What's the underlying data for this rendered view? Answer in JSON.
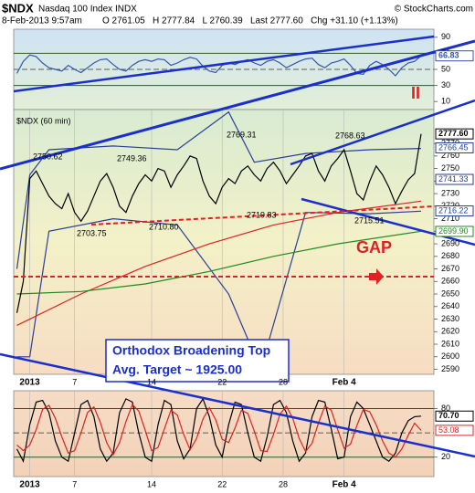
{
  "header": {
    "symbol": "$NDX",
    "name": "Nasdaq 100 Index INDX",
    "source": "© StockCharts.com",
    "date": "8-Feb-2013 9:57am",
    "quote": "O 2761.05   H 2777.84   L 2760.39   Last 2777.60   Chg +31.10 (+1.13%)"
  },
  "chart_data": [
    {
      "type": "line",
      "xlim": [
        -0.5,
        65
      ],
      "ylim": [
        0,
        100
      ],
      "yticks": [
        90,
        70,
        50,
        30,
        10
      ],
      "levels": [
        70,
        50,
        30
      ],
      "series": [
        {
          "color": "#3355aa",
          "values": [
            45,
            60,
            68,
            66,
            58,
            52,
            50,
            48,
            55,
            50,
            46,
            52,
            58,
            62,
            63,
            56,
            50,
            48,
            55,
            60,
            62,
            60,
            63,
            62,
            55,
            58,
            62,
            65,
            63,
            54,
            48,
            46,
            55,
            58,
            56,
            60,
            62,
            58,
            55,
            60,
            62,
            58,
            52,
            56,
            60,
            63,
            64,
            56,
            52,
            58,
            60,
            63,
            55,
            45,
            44,
            55,
            60,
            56,
            50,
            42,
            52,
            58,
            60,
            66.83
          ]
        }
      ],
      "last_labels": [
        {
          "value": 66.83,
          "label": "66.83",
          "color": "#3355aa"
        }
      ]
    },
    {
      "type": "line",
      "xlim": [
        -0.5,
        65
      ],
      "ylim": [
        2586,
        2797
      ],
      "yticks": [
        2590,
        2600,
        2610,
        2620,
        2630,
        2640,
        2650,
        2660,
        2670,
        2680,
        2690,
        2700,
        2710,
        2720,
        2730,
        2740,
        2750,
        2760,
        2770
      ],
      "xticks": [
        {
          "value": 2,
          "label": "2013"
        },
        {
          "value": 9,
          "label": "7"
        },
        {
          "value": 21,
          "label": "14"
        },
        {
          "value": 32,
          "label": "22"
        },
        {
          "value": 41.5,
          "label": "28"
        },
        {
          "value": 51,
          "label": "Feb 4"
        }
      ],
      "series": [
        {
          "color": "#2a3f99",
          "x": [
            0,
            2,
            5,
            15,
            25,
            33,
            37,
            45,
            55,
            63
          ],
          "values": [
            2670,
            2745,
            2765,
            2768,
            2765,
            2795,
            2755,
            2762,
            2765,
            2766
          ]
        },
        {
          "color": "#2a3f99",
          "x": [
            0,
            2,
            5,
            15,
            25,
            33,
            38,
            45,
            55,
            63
          ],
          "values": [
            2600,
            2600,
            2700,
            2710,
            2705,
            2650,
            2590,
            2715,
            2714,
            2716
          ]
        },
        {
          "color": "#dd2222",
          "x": [
            0,
            10,
            20,
            30,
            40,
            50,
            63
          ],
          "values": [
            2625,
            2650,
            2672,
            2690,
            2705,
            2715,
            2724
          ]
        },
        {
          "color": "#228822",
          "x": [
            0,
            10,
            20,
            30,
            40,
            50,
            63
          ],
          "values": [
            2650,
            2652,
            2658,
            2668,
            2680,
            2690,
            2700
          ]
        },
        {
          "color": "#000000",
          "values": [
            2635,
            2660,
            2742,
            2748,
            2738,
            2728,
            2722,
            2718,
            2730,
            2715,
            2708,
            2716,
            2728,
            2740,
            2746,
            2735,
            2720,
            2715,
            2728,
            2738,
            2745,
            2740,
            2750,
            2748,
            2735,
            2745,
            2752,
            2760,
            2758,
            2740,
            2728,
            2722,
            2735,
            2742,
            2738,
            2748,
            2752,
            2745,
            2740,
            2750,
            2755,
            2748,
            2738,
            2745,
            2752,
            2760,
            2762,
            2748,
            2740,
            2752,
            2758,
            2765,
            2748,
            2730,
            2725,
            2740,
            2752,
            2745,
            2735,
            2722,
            2732,
            2741,
            2746,
            2777.6
          ]
        }
      ],
      "last_labels": [
        {
          "value": 2777.6,
          "label": "2777.60",
          "color": "#000000"
        },
        {
          "value": 2766.45,
          "label": "2766.45",
          "color": "#2a3f99"
        },
        {
          "value": 2741.33,
          "label": "2741.33",
          "color": "#2a3f99"
        },
        {
          "value": 2716.22,
          "label": "2716.22",
          "color": "#2a3f99"
        },
        {
          "value": 2699.9,
          "label": "2699.90",
          "color": "#228822"
        }
      ],
      "annotations": [
        "$NDX (60 min)",
        "2750.62",
        "2749.36",
        "2769.31",
        "2768.63",
        "2703.75",
        "2710.80",
        "2719.83",
        "2715.51",
        "GAP",
        "II",
        "Orthodox Broadening Top",
        "Avg. Target ~ 1925.00"
      ]
    },
    {
      "type": "line",
      "xlim": [
        -0.5,
        65
      ],
      "ylim": [
        -4,
        102
      ],
      "yticks": [
        80,
        20
      ],
      "levels": [
        80,
        50,
        20
      ],
      "xticks": [
        {
          "value": 2,
          "label": "2013"
        },
        {
          "value": 9,
          "label": "7"
        },
        {
          "value": 21,
          "label": "14"
        },
        {
          "value": 32,
          "label": "22"
        },
        {
          "value": 41.5,
          "label": "28"
        },
        {
          "value": 51,
          "label": "Feb 4"
        }
      ],
      "series": [
        {
          "color": "#000000",
          "values": [
            30,
            15,
            60,
            88,
            90,
            75,
            40,
            20,
            15,
            50,
            85,
            90,
            70,
            30,
            15,
            25,
            75,
            92,
            88,
            50,
            20,
            15,
            60,
            90,
            85,
            40,
            18,
            30,
            80,
            92,
            70,
            35,
            20,
            60,
            88,
            85,
            50,
            20,
            15,
            45,
            85,
            90,
            75,
            40,
            15,
            25,
            70,
            90,
            88,
            55,
            18,
            20,
            70,
            88,
            80,
            60,
            40,
            20,
            15,
            25,
            50,
            65,
            70,
            70.7
          ]
        },
        {
          "color": "#dd2222",
          "values": [
            35,
            28,
            35,
            54,
            79,
            84,
            68,
            45,
            25,
            28,
            50,
            75,
            82,
            63,
            38,
            23,
            38,
            64,
            85,
            77,
            53,
            28,
            32,
            55,
            78,
            72,
            48,
            29,
            43,
            67,
            81,
            66,
            42,
            38,
            56,
            78,
            74,
            52,
            28,
            27,
            48,
            73,
            83,
            68,
            43,
            27,
            37,
            62,
            83,
            78,
            54,
            31,
            36,
            59,
            79,
            76,
            60,
            40,
            25,
            20,
            30,
            47,
            62,
            53.08
          ]
        }
      ],
      "last_labels": [
        {
          "value": 70.7,
          "label": "70.70",
          "color": "#000000"
        },
        {
          "value": 53.08,
          "label": "53.08",
          "color": "#dd2222"
        }
      ]
    }
  ]
}
